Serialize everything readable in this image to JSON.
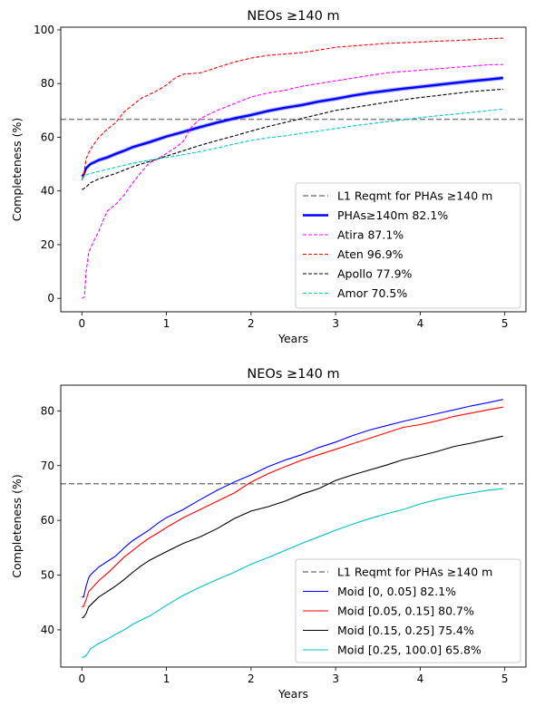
{
  "chart_data": [
    {
      "type": "line",
      "title": "NEOs $\\geq$140 m",
      "title_display": "NEOs ≥140 m",
      "xlabel": "Years",
      "ylabel": "Completeness (%)",
      "xlim": [
        -0.25,
        5.25
      ],
      "ylim": [
        -5,
        101
      ],
      "xticks": [
        0,
        1,
        2,
        3,
        4,
        5
      ],
      "yticks": [
        0,
        20,
        40,
        60,
        80,
        100
      ],
      "grid": false,
      "legend_position": "lower-right",
      "reference_line": {
        "label": "L1 Reqmt for PHAs ≥140 m",
        "y": 66.7,
        "color": "#808080",
        "style": "dashed"
      },
      "series": [
        {
          "name": "PHAs≥140m  82.1%",
          "color": "#0000ff",
          "style": "solid-thick",
          "band": true,
          "x": [
            0,
            0.02,
            0.05,
            0.1,
            0.2,
            0.3,
            0.4,
            0.5,
            0.6,
            0.8,
            1.0,
            1.2,
            1.4,
            1.6,
            1.8,
            2.0,
            2.2,
            2.4,
            2.6,
            2.8,
            3.0,
            3.2,
            3.4,
            3.6,
            3.8,
            4.0,
            4.2,
            4.4,
            4.6,
            4.8,
            4.98
          ],
          "y": [
            45.5,
            46.0,
            48.5,
            50.0,
            51.5,
            52.5,
            53.8,
            55.0,
            56.3,
            58.2,
            60.3,
            62.0,
            63.8,
            65.5,
            67.0,
            68.3,
            69.8,
            71.0,
            72.0,
            73.3,
            74.3,
            75.5,
            76.5,
            77.3,
            78.1,
            78.8,
            79.5,
            80.2,
            80.9,
            81.5,
            82.1
          ]
        },
        {
          "name": "Atira  87.1%",
          "color": "#ff00ff",
          "style": "dashed",
          "x": [
            0,
            0.03,
            0.05,
            0.08,
            0.1,
            0.15,
            0.2,
            0.25,
            0.3,
            0.4,
            0.5,
            0.6,
            0.7,
            0.8,
            0.9,
            1.0,
            1.1,
            1.2,
            1.3,
            1.4,
            1.6,
            1.8,
            2.0,
            2.2,
            2.4,
            2.6,
            2.8,
            3.0,
            3.2,
            3.4,
            3.6,
            3.8,
            4.0,
            4.2,
            4.4,
            4.6,
            4.8,
            4.98
          ],
          "y": [
            0,
            0.5,
            10,
            17,
            18.5,
            22,
            25,
            29,
            32.5,
            35,
            38.5,
            43,
            47,
            50.5,
            52,
            54,
            56,
            58.5,
            64,
            67,
            70,
            72.5,
            75,
            76.5,
            77.5,
            79,
            80,
            81,
            82,
            83,
            84,
            84.5,
            85,
            85.5,
            86,
            86.5,
            87,
            87.1
          ]
        },
        {
          "name": "Aten  96.9%",
          "color": "#ff0000",
          "style": "dashed",
          "x": [
            0,
            0.02,
            0.05,
            0.1,
            0.2,
            0.3,
            0.4,
            0.5,
            0.6,
            0.7,
            0.8,
            0.9,
            1.0,
            1.1,
            1.2,
            1.4,
            1.6,
            1.8,
            2.0,
            2.2,
            2.4,
            2.6,
            2.8,
            3.0,
            3.2,
            3.4,
            3.6,
            3.8,
            4.0,
            4.2,
            4.4,
            4.6,
            4.8,
            4.98
          ],
          "y": [
            44,
            46,
            52,
            55.5,
            60,
            63,
            65.5,
            69.5,
            72,
            74.5,
            76,
            77.5,
            79.5,
            82,
            83.5,
            84,
            86,
            88,
            89.5,
            90.5,
            91,
            91.5,
            92.5,
            93.5,
            94,
            94.5,
            95,
            95.2,
            95.5,
            95.8,
            96,
            96.3,
            96.7,
            96.9
          ]
        },
        {
          "name": "Apollo  77.9%",
          "color": "#000000",
          "style": "dashed",
          "x": [
            0,
            0.02,
            0.05,
            0.1,
            0.2,
            0.4,
            0.6,
            0.8,
            1.0,
            1.2,
            1.4,
            1.6,
            1.8,
            2.0,
            2.2,
            2.4,
            2.6,
            2.8,
            3.0,
            3.2,
            3.4,
            3.6,
            3.8,
            4.0,
            4.2,
            4.4,
            4.6,
            4.8,
            4.98
          ],
          "y": [
            40.5,
            40.8,
            41.5,
            43,
            44.5,
            46.5,
            49,
            51,
            53,
            55,
            57,
            58.8,
            60.5,
            62.3,
            64,
            65.5,
            67,
            68.5,
            70,
            71,
            72,
            73,
            74,
            74.8,
            75.5,
            76.3,
            77,
            77.5,
            77.9
          ]
        },
        {
          "name": "Amor  70.5%",
          "color": "#00c8c8",
          "style": "dashed",
          "x": [
            0,
            0.02,
            0.05,
            0.1,
            0.2,
            0.4,
            0.6,
            0.8,
            1.0,
            1.2,
            1.4,
            1.6,
            1.8,
            2.0,
            2.2,
            2.4,
            2.6,
            2.8,
            3.0,
            3.2,
            3.4,
            3.6,
            3.8,
            4.0,
            4.2,
            4.4,
            4.6,
            4.8,
            4.98
          ],
          "y": [
            44.5,
            45,
            46,
            46.5,
            47.3,
            48.8,
            50.3,
            51.5,
            52.5,
            53.5,
            54.7,
            56,
            57.5,
            58.8,
            59.8,
            60.5,
            61.5,
            62.3,
            63.3,
            64.2,
            65,
            65.8,
            66.5,
            67.3,
            68,
            68.6,
            69.2,
            69.9,
            70.5
          ]
        }
      ]
    },
    {
      "type": "line",
      "title": "NEOs $\\geq$140 m",
      "title_display": "NEOs ≥140 m",
      "xlabel": "Years",
      "ylabel": "Completeness (%)",
      "xlim": [
        -0.25,
        5.25
      ],
      "ylim": [
        33.2,
        84.7
      ],
      "xticks": [
        0,
        1,
        2,
        3,
        4,
        5
      ],
      "yticks": [
        40,
        50,
        60,
        70,
        80
      ],
      "grid": false,
      "legend_position": "lower-right",
      "reference_line": {
        "label": "L1 Reqmt for PHAs ≥140 m",
        "y": 66.7,
        "color": "#808080",
        "style": "dashed"
      },
      "series": [
        {
          "name": "Moid [0, 0.05]  82.1%",
          "color": "#0000ff",
          "style": "solid",
          "x": [
            0,
            0.02,
            0.05,
            0.08,
            0.1,
            0.2,
            0.3,
            0.4,
            0.5,
            0.6,
            0.7,
            0.8,
            0.9,
            1.0,
            1.2,
            1.4,
            1.6,
            1.8,
            2.0,
            2.2,
            2.4,
            2.6,
            2.8,
            3.0,
            3.2,
            3.4,
            3.6,
            3.8,
            4.0,
            4.2,
            4.4,
            4.6,
            4.8,
            4.98
          ],
          "y": [
            46,
            46,
            48,
            49.5,
            50,
            51.5,
            52.5,
            53.5,
            55,
            56.3,
            57.3,
            58.3,
            59.5,
            60.5,
            62,
            63.8,
            65.5,
            67,
            68.3,
            69.8,
            71,
            72,
            73.3,
            74.3,
            75.5,
            76.5,
            77.3,
            78.1,
            78.8,
            79.5,
            80.2,
            80.9,
            81.5,
            82.1
          ]
        },
        {
          "name": "Moid [0.05, 0.15]  80.7%",
          "color": "#ff0000",
          "style": "solid",
          "x": [
            0,
            0.02,
            0.05,
            0.08,
            0.1,
            0.2,
            0.3,
            0.4,
            0.5,
            0.6,
            0.7,
            0.8,
            0.9,
            1.0,
            1.2,
            1.4,
            1.6,
            1.8,
            2.0,
            2.2,
            2.4,
            2.6,
            2.8,
            3.0,
            3.2,
            3.4,
            3.6,
            3.8,
            4.0,
            4.2,
            4.4,
            4.6,
            4.8,
            4.98
          ],
          "y": [
            44.2,
            44.3,
            45.5,
            47,
            47.3,
            49,
            50.3,
            51.8,
            53.3,
            54.5,
            55.7,
            56.8,
            57.7,
            58.7,
            60.5,
            62,
            63.5,
            65,
            67,
            68.5,
            69.8,
            71,
            72,
            73,
            74,
            75,
            76,
            77,
            77.5,
            78.2,
            79,
            79.6,
            80.2,
            80.7
          ]
        },
        {
          "name": "Moid [0.15, 0.25]  75.4%",
          "color": "#000000",
          "style": "solid",
          "x": [
            0,
            0.02,
            0.05,
            0.08,
            0.1,
            0.2,
            0.3,
            0.4,
            0.5,
            0.6,
            0.7,
            0.8,
            0.9,
            1.0,
            1.2,
            1.4,
            1.6,
            1.8,
            2.0,
            2.2,
            2.4,
            2.6,
            2.8,
            3.0,
            3.2,
            3.4,
            3.6,
            3.8,
            4.0,
            4.2,
            4.4,
            4.6,
            4.8,
            4.98
          ],
          "y": [
            42.2,
            42.3,
            43,
            44.2,
            44.5,
            46,
            47,
            48,
            49.2,
            50.5,
            51.7,
            52.7,
            53.5,
            54.3,
            55.8,
            57,
            58.5,
            60.3,
            61.7,
            62.5,
            63.5,
            64.8,
            65.8,
            67.3,
            68.3,
            69.2,
            70.1,
            71.1,
            71.8,
            72.6,
            73.5,
            74.1,
            74.8,
            75.4
          ]
        },
        {
          "name": "Moid [0.25, 100.0]  65.8%",
          "color": "#00c0c0",
          "style": "solid",
          "x": [
            0,
            0.02,
            0.05,
            0.08,
            0.1,
            0.2,
            0.3,
            0.4,
            0.5,
            0.6,
            0.7,
            0.8,
            0.9,
            1.0,
            1.2,
            1.4,
            1.6,
            1.8,
            2.0,
            2.2,
            2.4,
            2.6,
            2.8,
            3.0,
            3.2,
            3.4,
            3.6,
            3.8,
            4.0,
            4.2,
            4.4,
            4.6,
            4.8,
            4.98
          ],
          "y": [
            35,
            35,
            35.3,
            36,
            36.5,
            37.5,
            38.3,
            39.2,
            40,
            41,
            41.8,
            42.5,
            43.5,
            44.5,
            46.3,
            47.8,
            49.2,
            50.5,
            52,
            53.2,
            54.5,
            55.8,
            57,
            58.2,
            59.3,
            60.3,
            61.2,
            62,
            63,
            63.8,
            64.5,
            65,
            65.5,
            65.8
          ]
        }
      ]
    }
  ]
}
